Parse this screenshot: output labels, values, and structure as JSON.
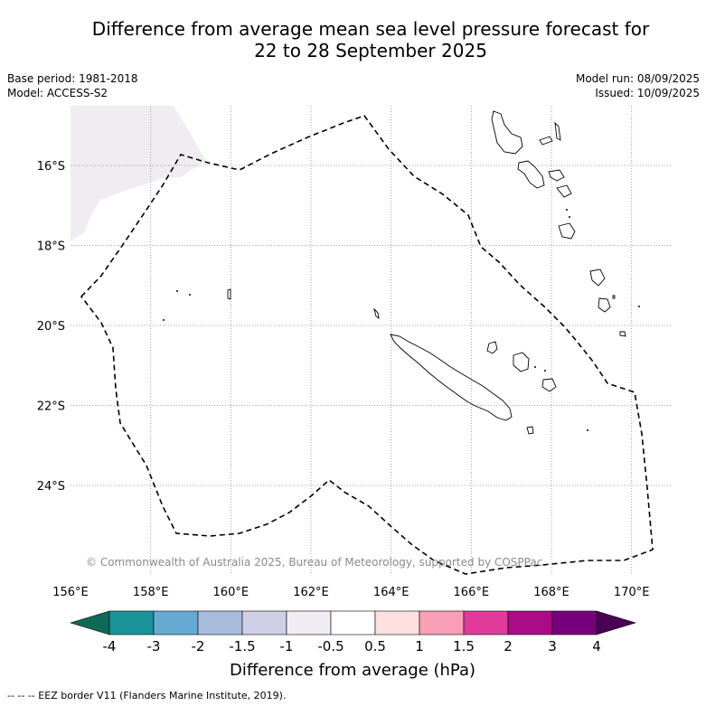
{
  "title_line1": "Difference from average mean sea level pressure forecast for",
  "title_line2": "22 to 28 September 2025",
  "base_period": "Base period: 1981-2018",
  "model": "Model: ACCESS-S2",
  "model_run": "Model run: 08/09/2025",
  "issued": "Issued: 10/09/2025",
  "copyright": "© Commonwealth of Australia 2025, Bureau of Meteorology, supported by COSPPac",
  "footer": "-- -- -- EEZ border V11 (Flanders Marine Institute, 2019).",
  "map": {
    "lon_ticks": [
      "156°E",
      "158°E",
      "160°E",
      "162°E",
      "164°E",
      "166°E",
      "168°E",
      "170°E"
    ],
    "lat_ticks": [
      "16°S",
      "18°S",
      "20°S",
      "22°S",
      "24°S"
    ],
    "lon_range": [
      156,
      171
    ],
    "lat_range": [
      -26.2,
      -14.5
    ],
    "shaded_region_color": "#f0ecf2",
    "eez_border_style": "dashed"
  },
  "colorbar": {
    "label": "Difference from average (hPa)",
    "tick_labels": [
      "-4",
      "-3",
      "-2",
      "-1.5",
      "-1",
      "-0.5",
      "0.5",
      "1",
      "1.5",
      "2",
      "3",
      "4"
    ],
    "colors": [
      "#1a9399",
      "#67abd3",
      "#a7bcdd",
      "#cfd0e6",
      "#f1ecf3",
      "#ffffff",
      "#fee0de",
      "#f99fb8",
      "#df3c9c",
      "#ab0b85",
      "#78007a"
    ],
    "under_color": "#0b6b58",
    "over_color": "#4a0055"
  }
}
